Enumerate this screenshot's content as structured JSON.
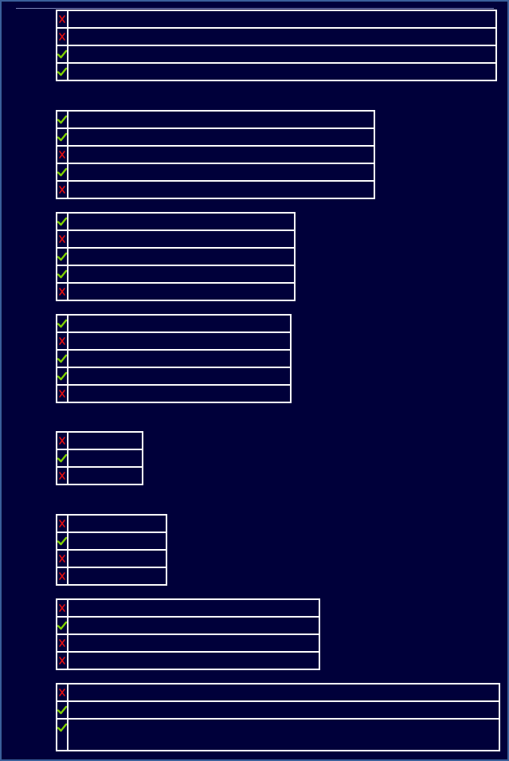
{
  "icons": {
    "correct": "check-icon",
    "incorrect": "cross-icon"
  },
  "colors": {
    "background": "#00003a",
    "border": "#ffffff",
    "correct": "#7fd000",
    "incorrect": "#e01010"
  },
  "groups": [
    {
      "items": [
        {
          "result": "incorrect",
          "text": ""
        },
        {
          "result": "incorrect",
          "text": ""
        },
        {
          "result": "correct",
          "text": ""
        },
        {
          "result": "correct",
          "text": ""
        }
      ]
    },
    {
      "items": [
        {
          "result": "correct",
          "text": ""
        },
        {
          "result": "correct",
          "text": ""
        },
        {
          "result": "incorrect",
          "text": ""
        },
        {
          "result": "correct",
          "text": ""
        },
        {
          "result": "incorrect",
          "text": ""
        }
      ]
    },
    {
      "items": [
        {
          "result": "correct",
          "text": ""
        },
        {
          "result": "incorrect",
          "text": ""
        },
        {
          "result": "correct",
          "text": ""
        },
        {
          "result": "correct",
          "text": ""
        },
        {
          "result": "incorrect",
          "text": ""
        }
      ]
    },
    {
      "items": [
        {
          "result": "correct",
          "text": ""
        },
        {
          "result": "incorrect",
          "text": ""
        },
        {
          "result": "correct",
          "text": ""
        },
        {
          "result": "correct",
          "text": ""
        },
        {
          "result": "incorrect",
          "text": ""
        }
      ]
    },
    {
      "items": [
        {
          "result": "incorrect",
          "text": ""
        },
        {
          "result": "correct",
          "text": ""
        },
        {
          "result": "incorrect",
          "text": ""
        }
      ]
    },
    {
      "items": [
        {
          "result": "incorrect",
          "text": ""
        },
        {
          "result": "correct",
          "text": ""
        },
        {
          "result": "incorrect",
          "text": ""
        },
        {
          "result": "incorrect",
          "text": ""
        }
      ]
    },
    {
      "items": [
        {
          "result": "incorrect",
          "text": ""
        },
        {
          "result": "correct",
          "text": ""
        },
        {
          "result": "incorrect",
          "text": ""
        },
        {
          "result": "incorrect",
          "text": ""
        }
      ]
    },
    {
      "items": [
        {
          "result": "incorrect",
          "text": ""
        },
        {
          "result": "correct",
          "text": ""
        },
        {
          "result": "correct",
          "text": ""
        }
      ]
    }
  ]
}
